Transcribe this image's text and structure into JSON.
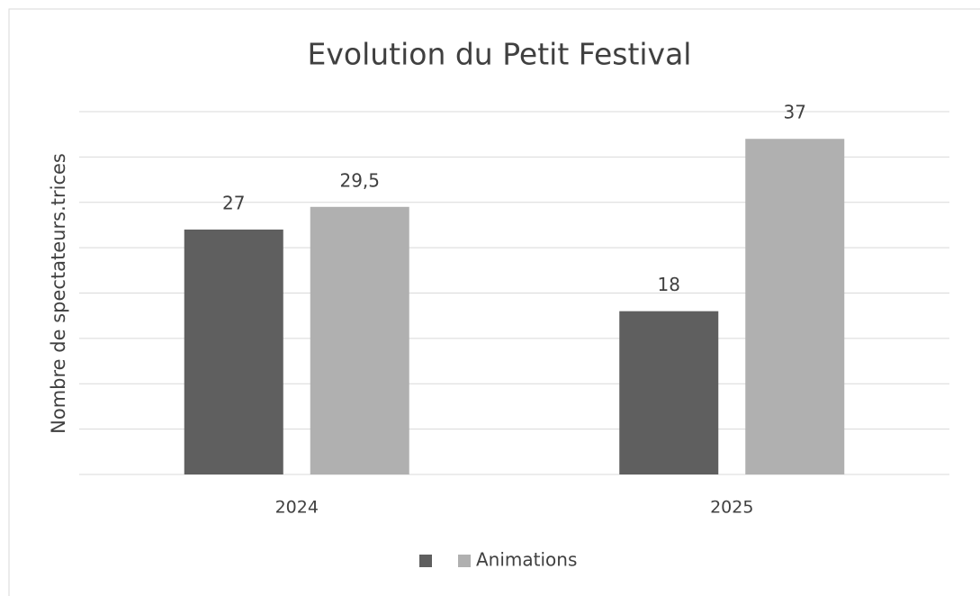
{
  "chart_data": {
    "type": "bar",
    "title": "Evolution du Petit Festival",
    "y_label": "Nombre de spectateurs.trices",
    "categories": [
      "2024",
      "2025"
    ],
    "series": [
      {
        "name": null,
        "color": "#5f5f5f",
        "values": [
          27,
          18
        ],
        "value_labels": [
          "27",
          "18"
        ]
      },
      {
        "name": "Animations",
        "color": "#b0b0b0",
        "values": [
          29.5,
          37
        ],
        "value_labels": [
          "29,5",
          "37"
        ]
      }
    ],
    "ylim": [
      0,
      40
    ],
    "yticks": [
      0,
      5,
      10,
      15,
      20,
      25,
      30,
      35,
      40
    ],
    "grid": true,
    "legend": "bottom"
  }
}
